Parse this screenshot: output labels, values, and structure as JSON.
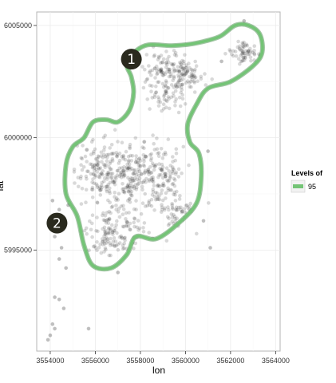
{
  "chart_data": {
    "type": "scatter",
    "title": "",
    "xlabel": "lon",
    "ylabel": "lat",
    "xlim": [
      3553400,
      3564200
    ],
    "ylim": [
      5990500,
      6005600
    ],
    "x_ticks": [
      3554000,
      3556000,
      3558000,
      3560000,
      3562000,
      3564000
    ],
    "y_ticks": [
      5995000,
      6000000,
      6005000
    ],
    "x_tick_labels": [
      "3554000",
      "3556000",
      "3558000",
      "3560000",
      "3562000",
      "3564000"
    ],
    "y_tick_labels": [
      "5995000",
      "6000000",
      "6005000"
    ],
    "grid": true,
    "background": "#ffffff",
    "point_color": "#000000",
    "point_alpha": 0.15,
    "contour_color": "#74c476",
    "legend": {
      "title": "Levels of",
      "placement": "right",
      "entries": [
        {
          "label": "95",
          "color": "#74c476"
        }
      ]
    },
    "contour_level": 95,
    "contour": [
      [
        3555500,
        6000000
      ],
      [
        3555900,
        6000700
      ],
      [
        3556500,
        6000800
      ],
      [
        3557000,
        6000700
      ],
      [
        3557500,
        6001200
      ],
      [
        3557700,
        6002000
      ],
      [
        3557600,
        6002700
      ],
      [
        3557400,
        6003400
      ],
      [
        3558200,
        6004100
      ],
      [
        3559400,
        6004100
      ],
      [
        3560400,
        6004200
      ],
      [
        3561500,
        6004500
      ],
      [
        3562200,
        6005000
      ],
      [
        3562800,
        6005000
      ],
      [
        3563300,
        6004600
      ],
      [
        3563400,
        6003800
      ],
      [
        3563000,
        6003200
      ],
      [
        3562000,
        6002500
      ],
      [
        3561000,
        6002200
      ],
      [
        3560500,
        6001500
      ],
      [
        3560100,
        6000600
      ],
      [
        3560200,
        5999800
      ],
      [
        3560600,
        5999300
      ],
      [
        3560700,
        5998300
      ],
      [
        3560500,
        5997100
      ],
      [
        3559700,
        5996200
      ],
      [
        3558700,
        5995500
      ],
      [
        3557800,
        5995600
      ],
      [
        3557400,
        5994800
      ],
      [
        3556700,
        5994200
      ],
      [
        3555900,
        5994300
      ],
      [
        3555500,
        5995200
      ],
      [
        3555200,
        5996500
      ],
      [
        3554700,
        5997500
      ],
      [
        3554700,
        5998800
      ],
      [
        3555000,
        5999600
      ],
      [
        3555500,
        6000000
      ]
    ],
    "clusters": [
      {
        "cx": 3559300,
        "cy": 6002900,
        "sx": 500,
        "sy": 450,
        "n": 130
      },
      {
        "cx": 3560200,
        "cy": 6002800,
        "sx": 350,
        "sy": 300,
        "n": 50
      },
      {
        "cx": 3562700,
        "cy": 6003800,
        "sx": 350,
        "sy": 300,
        "n": 60
      },
      {
        "cx": 3559100,
        "cy": 6001700,
        "sx": 350,
        "sy": 250,
        "n": 40
      },
      {
        "cx": 3556200,
        "cy": 5998700,
        "sx": 500,
        "sy": 700,
        "n": 130
      },
      {
        "cx": 3557300,
        "cy": 5998300,
        "sx": 600,
        "sy": 700,
        "n": 140
      },
      {
        "cx": 3558700,
        "cy": 5998400,
        "sx": 600,
        "sy": 750,
        "n": 160
      },
      {
        "cx": 3557000,
        "cy": 5996200,
        "sx": 700,
        "sy": 500,
        "n": 110
      },
      {
        "cx": 3559500,
        "cy": 5996700,
        "sx": 500,
        "sy": 450,
        "n": 60
      },
      {
        "cx": 3556600,
        "cy": 5995300,
        "sx": 400,
        "sy": 300,
        "n": 40
      }
    ],
    "outliers": [
      [
        3554100,
        5997200
      ],
      [
        3554400,
        5996800
      ],
      [
        3554300,
        5996200
      ],
      [
        3554200,
        5995600
      ],
      [
        3554500,
        5995100
      ],
      [
        3554400,
        5994600
      ],
      [
        3554700,
        5994200
      ],
      [
        3554200,
        5992900
      ],
      [
        3554400,
        5992800
      ],
      [
        3554600,
        5992400
      ],
      [
        3554100,
        5991700
      ],
      [
        3554200,
        5991500
      ],
      [
        3554000,
        5991200
      ],
      [
        3553900,
        5991000
      ],
      [
        3555700,
        5991500
      ],
      [
        3557000,
        5994000
      ],
      [
        3561100,
        5995100
      ],
      [
        3560800,
        5996300
      ],
      [
        3561000,
        5999400
      ],
      [
        3561600,
        6003400
      ],
      [
        3562600,
        6005200
      ],
      [
        3554800,
        5997000
      ]
    ]
  },
  "annotations": [
    {
      "label": "1",
      "x": 3557600,
      "y": 6003500
    },
    {
      "label": "2",
      "x": 3554300,
      "y": 5996200
    }
  ]
}
